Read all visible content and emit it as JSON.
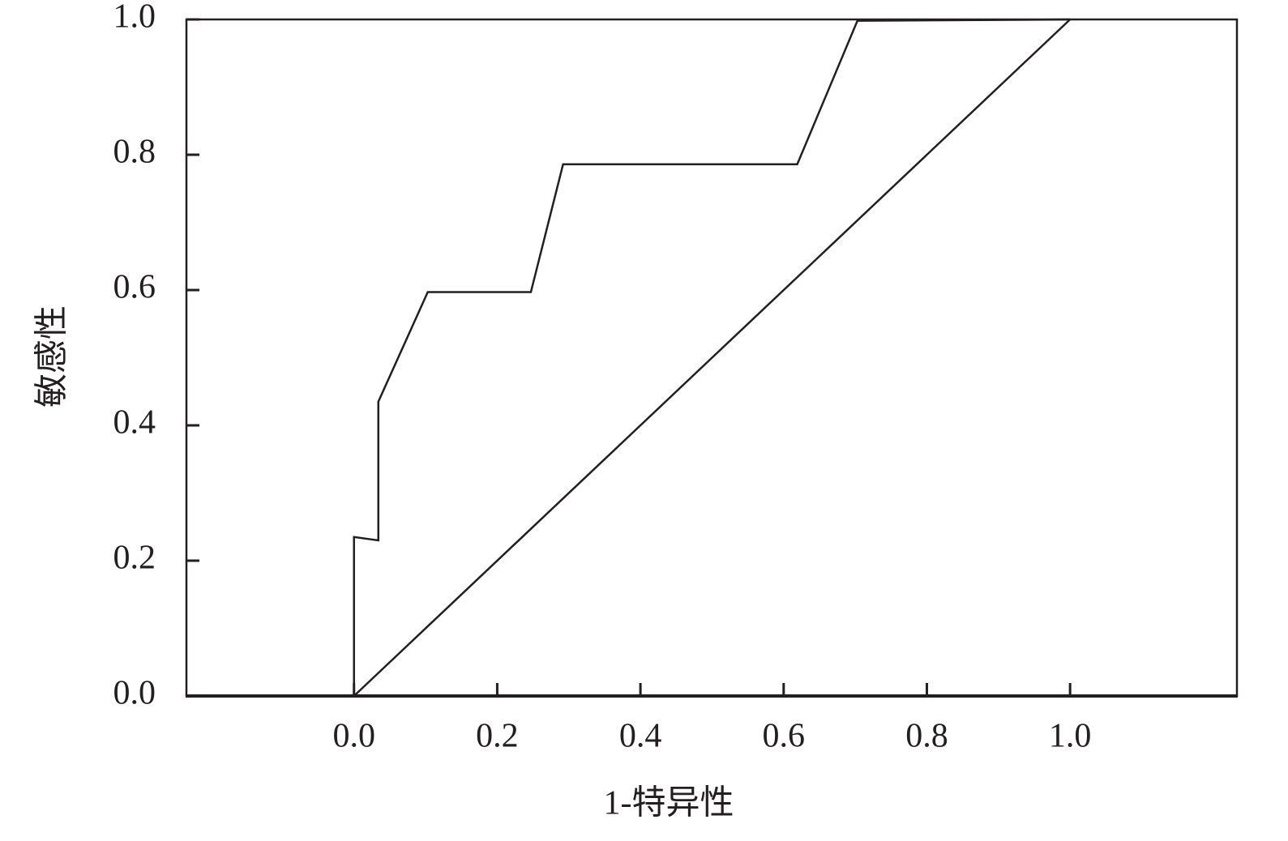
{
  "chart_data": {
    "type": "line",
    "x_label": "1-特异性",
    "y_label": "敏感性",
    "series": [
      {
        "color": "#231f20",
        "x": [
          0,
          0,
          0.034,
          0.034,
          0.103,
          0.247,
          0.292,
          0.619,
          0.703,
          1.0
        ],
        "values": [
          0,
          0.235,
          0.23,
          0.435,
          0.597,
          0.597,
          0.786,
          0.786,
          0.998,
          1.0
        ]
      },
      {
        "color": "#231f20",
        "x": [
          0,
          1.0
        ],
        "values": [
          0,
          1.0
        ]
      }
    ],
    "xlim": [
      -0.234,
      1.233
    ],
    "ylim": [
      0,
      1.0
    ],
    "xticks": [
      {
        "value": 0,
        "label": "0.0"
      },
      {
        "value": 0.2,
        "label": "0.2"
      },
      {
        "value": 0.4,
        "label": "0.4"
      },
      {
        "value": 0.6,
        "label": "0.6"
      },
      {
        "value": 0.8,
        "label": "0.8"
      },
      {
        "value": 1.0,
        "label": "1.0"
      }
    ],
    "yticks": [
      {
        "value": 0,
        "label": "0.0"
      },
      {
        "value": 0.2,
        "label": "0.2"
      },
      {
        "value": 0.4,
        "label": "0.4"
      },
      {
        "value": 0.6,
        "label": "0.6"
      },
      {
        "value": 0.8,
        "label": "0.8"
      },
      {
        "value": 1.0,
        "label": "1.0"
      }
    ],
    "grid": false
  }
}
